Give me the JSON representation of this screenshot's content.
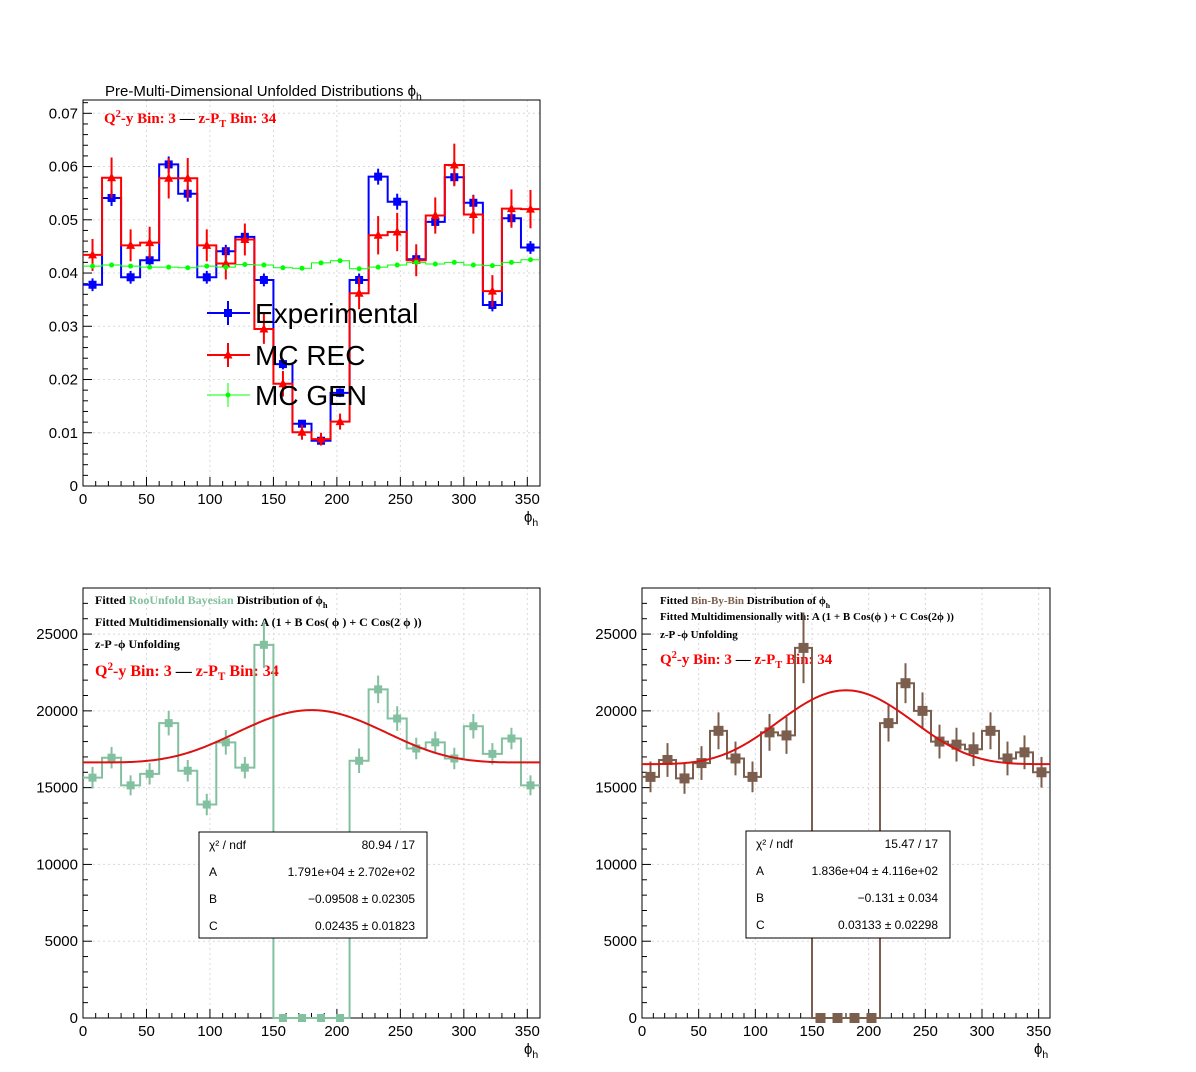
{
  "chart_data": [
    {
      "type": "line",
      "title": "Pre-Multi-Dimensional Unfolded Distributions ϕ",
      "title_sub": "h",
      "bin_label": {
        "q2y": "Q",
        "q2y_sup": "2",
        "q2y_rest": "-y Bin: 3",
        "dash": "—",
        "zpt": "z-P",
        "zpt_sub": "T",
        "zpt_rest": " Bin: 34"
      },
      "xlabel": "ϕ",
      "xlabel_sub": "h",
      "xlim": [
        0,
        360
      ],
      "ylim": [
        0,
        0.0725
      ],
      "xticks": [
        "0",
        "50",
        "100",
        "150",
        "200",
        "250",
        "300",
        "350"
      ],
      "yticks": [
        "0",
        "0.01",
        "0.02",
        "0.03",
        "0.04",
        "0.05",
        "0.06",
        "0.07"
      ],
      "grid": true,
      "legend": [
        "Experimental",
        "MC REC",
        "MC GEN"
      ],
      "x": [
        7.5,
        22.5,
        37.5,
        52.5,
        67.5,
        82.5,
        97.5,
        112.5,
        127.5,
        142.5,
        157.5,
        172.5,
        187.5,
        202.5,
        217.5,
        232.5,
        247.5,
        262.5,
        277.5,
        292.5,
        307.5,
        322.5,
        337.5,
        352.5
      ],
      "series": [
        {
          "name": "Experimental",
          "color": "#0000ff",
          "marker": "square",
          "values": [
            0.0378,
            0.0541,
            0.0392,
            0.0424,
            0.0604,
            0.0549,
            0.0392,
            0.0441,
            0.0468,
            0.0387,
            0.0229,
            0.0117,
            0.0085,
            0.0175,
            0.0387,
            0.0581,
            0.0534,
            0.0426,
            0.0496,
            0.058,
            0.0532,
            0.034,
            0.0503,
            0.0448
          ],
          "errors": [
            0.0012,
            0.0015,
            0.0012,
            0.0012,
            0.0015,
            0.0015,
            0.0012,
            0.0012,
            0.0012,
            0.0012,
            0.001,
            0.0006,
            0.0006,
            0.0008,
            0.0012,
            0.0015,
            0.0015,
            0.0012,
            0.0013,
            0.0015,
            0.0015,
            0.0012,
            0.0015,
            0.0012
          ]
        },
        {
          "name": "MC REC",
          "color": "#ff0000",
          "marker": "triangle",
          "values": [
            0.0434,
            0.0579,
            0.0452,
            0.0457,
            0.0578,
            0.0578,
            0.0452,
            0.0418,
            0.0463,
            0.0295,
            0.0192,
            0.0101,
            0.0088,
            0.0121,
            0.0362,
            0.0471,
            0.0477,
            0.0424,
            0.0508,
            0.0603,
            0.051,
            0.0366,
            0.0521,
            0.052
          ],
          "errors": [
            0.003,
            0.0038,
            0.003,
            0.003,
            0.0038,
            0.0038,
            0.003,
            0.003,
            0.003,
            0.0028,
            0.0024,
            0.0014,
            0.0012,
            0.0015,
            0.003,
            0.0036,
            0.0036,
            0.003,
            0.0034,
            0.004,
            0.0036,
            0.003,
            0.0036,
            0.0036
          ]
        },
        {
          "name": "MC GEN",
          "color": "#00ff00",
          "marker": "circle",
          "values": [
            0.0413,
            0.0415,
            0.0413,
            0.0411,
            0.0411,
            0.041,
            0.0413,
            0.0411,
            0.0416,
            0.0415,
            0.041,
            0.0409,
            0.0419,
            0.0423,
            0.0408,
            0.0411,
            0.0415,
            0.042,
            0.0417,
            0.042,
            0.0415,
            0.0414,
            0.042,
            0.0425
          ],
          "errors": [
            0.0004,
            0.0004,
            0.0004,
            0.0004,
            0.0004,
            0.0004,
            0.0004,
            0.0004,
            0.0004,
            0.0004,
            0.0004,
            0.0004,
            0.0004,
            0.0004,
            0.0004,
            0.0004,
            0.0004,
            0.0004,
            0.0004,
            0.0004,
            0.0004,
            0.0004,
            0.0004,
            0.0004
          ]
        }
      ]
    },
    {
      "type": "line",
      "title_lines": [
        {
          "text": "Fitted",
          "method": "RooUnfold Bayesian",
          "rest": "Distribution of  ϕ",
          "sub": "h"
        },
        {
          "text": "Fitted Multidimensionally with: A (1 + B Cos(    ϕ  ) + C Cos(2  ϕ  ))"
        },
        {
          "text": "z-P -ϕ  Unfolding"
        }
      ],
      "bin_label": {
        "q2y": "Q",
        "q2y_sup": "2",
        "q2y_rest": "-y Bin: 3",
        "dash": "—",
        "zpt": "z-P",
        "zpt_sub": "T",
        "zpt_rest": " Bin: 34"
      },
      "xlabel": "ϕ",
      "xlabel_sub": "h",
      "xlim": [
        0,
        360
      ],
      "ylim": [
        0,
        28000
      ],
      "xticks": [
        "0",
        "50",
        "100",
        "150",
        "200",
        "250",
        "300",
        "350"
      ],
      "yticks": [
        "0",
        "5000",
        "10000",
        "15000",
        "20000",
        "25000"
      ],
      "grid": true,
      "hist_color": "#82c0a0",
      "fit_color": "#dd1111",
      "x": [
        7.5,
        22.5,
        37.5,
        52.5,
        67.5,
        82.5,
        97.5,
        112.5,
        127.5,
        142.5,
        157.5,
        172.5,
        187.5,
        202.5,
        217.5,
        232.5,
        247.5,
        262.5,
        277.5,
        292.5,
        307.5,
        322.5,
        337.5,
        352.5
      ],
      "values": [
        15650,
        16950,
        15150,
        15900,
        19200,
        16100,
        13900,
        17950,
        16300,
        24300,
        0,
        0,
        0,
        0,
        16750,
        21400,
        19500,
        17550,
        17950,
        16900,
        19000,
        17200,
        18200,
        15150
      ],
      "errors": [
        700,
        700,
        650,
        700,
        800,
        700,
        700,
        800,
        700,
        1500,
        0,
        0,
        0,
        0,
        800,
        900,
        800,
        700,
        700,
        700,
        800,
        700,
        700,
        650
      ],
      "fit": {
        "A": 17910,
        "B": -0.09508,
        "C": 0.02435
      },
      "stats": [
        {
          "label": "χ² / ndf",
          "value": "80.94 / 17"
        },
        {
          "label": "A",
          "value": "1.791e+04 ± 2.702e+02"
        },
        {
          "label": "B",
          "value": "−0.09508 ± 0.02305"
        },
        {
          "label": "C",
          "value": "0.02435 ± 0.01823"
        }
      ]
    },
    {
      "type": "line",
      "title_lines": [
        {
          "text": "Fitted",
          "method": "Bin-By-Bin",
          "rest": "Distribution of  ϕ",
          "sub": "h"
        },
        {
          "text": "Fitted Multidimensionally with: A (1 + B Cos(ϕ ) + C Cos(2ϕ ))"
        },
        {
          "text": "z-P -ϕ  Unfolding"
        }
      ],
      "bin_label": {
        "q2y": "Q",
        "q2y_sup": "2",
        "q2y_rest": "-y Bin: 3",
        "dash": "—",
        "zpt": "z-P",
        "zpt_sub": "T",
        "zpt_rest": " Bin: 34"
      },
      "xlabel": "ϕ",
      "xlabel_sub": "h",
      "xlim": [
        0,
        360
      ],
      "ylim": [
        0,
        28000
      ],
      "xticks": [
        "0",
        "50",
        "100",
        "150",
        "200",
        "250",
        "300",
        "350"
      ],
      "yticks": [
        "0",
        "5000",
        "10000",
        "15000",
        "20000",
        "25000"
      ],
      "grid": true,
      "hist_color": "#7b5e4d",
      "fit_color": "#dd1111",
      "x": [
        7.5,
        22.5,
        37.5,
        52.5,
        67.5,
        82.5,
        97.5,
        112.5,
        127.5,
        142.5,
        157.5,
        172.5,
        187.5,
        202.5,
        217.5,
        232.5,
        247.5,
        262.5,
        277.5,
        292.5,
        307.5,
        322.5,
        337.5,
        352.5
      ],
      "values": [
        15700,
        16800,
        15600,
        16600,
        18700,
        16900,
        15700,
        18600,
        18400,
        24100,
        0,
        0,
        0,
        0,
        19200,
        21800,
        20000,
        18000,
        17800,
        17500,
        18700,
        16900,
        17300,
        16000
      ],
      "errors": [
        1000,
        1100,
        1000,
        1100,
        1200,
        1100,
        1000,
        1200,
        1200,
        2300,
        0,
        0,
        0,
        0,
        1200,
        1300,
        1200,
        1100,
        1100,
        1100,
        1200,
        1100,
        1100,
        1000
      ],
      "fit": {
        "A": 18360,
        "B": -0.131,
        "C": 0.03133
      },
      "stats": [
        {
          "label": "χ² / ndf",
          "value": "15.47 / 17"
        },
        {
          "label": "A",
          "value": "1.836e+04 ± 4.116e+02"
        },
        {
          "label": "B",
          "value": "−0.131 ± 0.034"
        },
        {
          "label": "C",
          "value": "0.03133 ± 0.02298"
        }
      ]
    }
  ]
}
